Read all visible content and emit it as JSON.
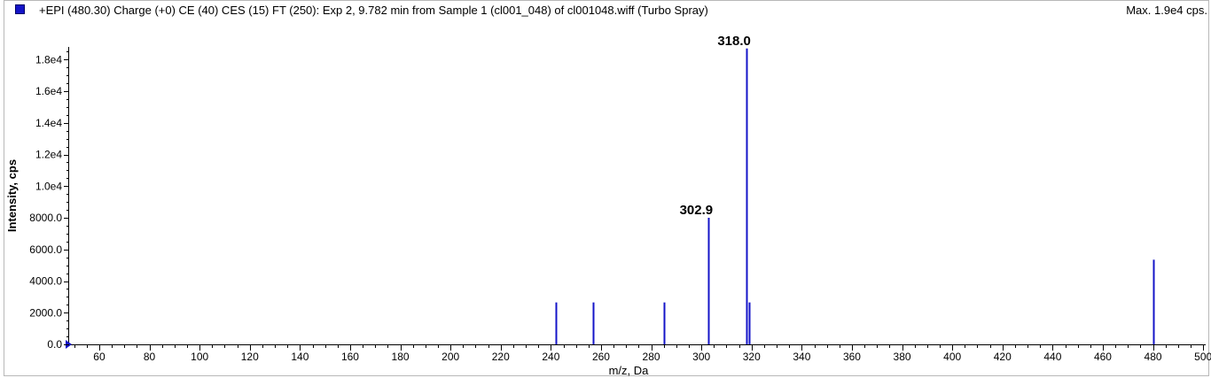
{
  "header": {
    "title": "+EPI (480.30) Charge (+0) CE (40) CES (15) FT (250): Exp 2, 9.782 min from Sample 1 (cl001_048) of cl001048.wiff (Turbo Spray)",
    "max_label": "Max. 1.9e4 cps.",
    "series_color": "#1414c8"
  },
  "chart_data": {
    "type": "bar",
    "title": "+EPI (480.30) Charge (+0) CE (40) CES (15) FT (250): Exp 2, 9.782 min from Sample 1 (cl001_048) of cl001048.wiff (Turbo Spray)",
    "xlabel": "m/z, Da",
    "ylabel": "Intensity, cps",
    "xlim": [
      48,
      501
    ],
    "ylim": [
      0,
      18800
    ],
    "x_ticks": [
      60,
      80,
      100,
      120,
      140,
      160,
      180,
      200,
      220,
      240,
      260,
      280,
      300,
      320,
      340,
      360,
      380,
      400,
      420,
      440,
      460,
      480,
      500
    ],
    "x_tick_labels": [
      "60",
      "80",
      "100",
      "120",
      "140",
      "160",
      "180",
      "200",
      "220",
      "240",
      "260",
      "280",
      "300",
      "320",
      "340",
      "360",
      "380",
      "400",
      "420",
      "440",
      "460",
      "480",
      "500"
    ],
    "y_ticks": [
      0,
      2000,
      4000,
      6000,
      8000,
      10000,
      12000,
      14000,
      16000,
      18000
    ],
    "y_tick_labels": [
      "0.0",
      "2000.0",
      "4000.0",
      "6000.0",
      "8000.0",
      "1.0e4",
      "1.2e4",
      "1.4e4",
      "1.6e4",
      "1.8e4"
    ],
    "grid": false,
    "series": [
      {
        "x": [
          242.0,
          257.0,
          285.0,
          302.6,
          302.9,
          317.8,
          318.0,
          319.0,
          480.2,
          480.3
        ],
        "values": [
          2650,
          2650,
          2650,
          5350,
          8000,
          13400,
          18700,
          2650,
          5300,
          5350
        ]
      }
    ],
    "annotations": [
      {
        "x": 302.9,
        "y": 8000,
        "text": "302.9"
      },
      {
        "x": 318.0,
        "y": 18700,
        "text": "318.0"
      }
    ]
  }
}
